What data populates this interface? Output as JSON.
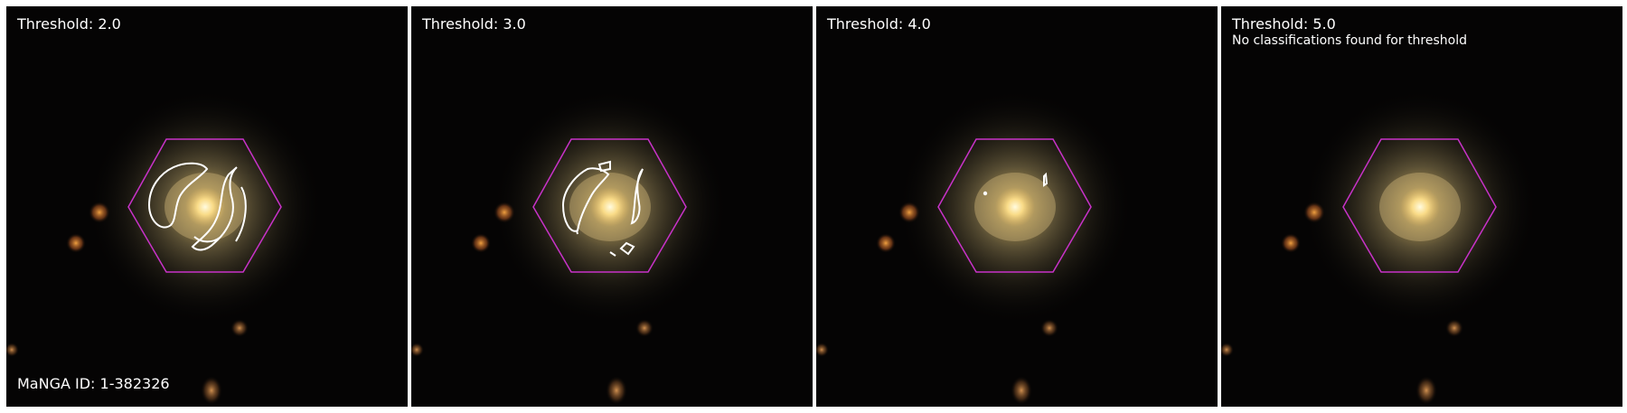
{
  "panels": [
    {
      "threshold_label": "Threshold: 2.0",
      "note": "",
      "footer": "MaNGA ID: 1-382326"
    },
    {
      "threshold_label": "Threshold: 3.0",
      "note": "",
      "footer": ""
    },
    {
      "threshold_label": "Threshold: 4.0",
      "note": "",
      "footer": ""
    },
    {
      "threshold_label": "Threshold: 5.0",
      "note": "No classifications found for threshold",
      "footer": ""
    }
  ],
  "colors": {
    "background": "#050404",
    "hexagon": "#c832c8",
    "contour": "#ffffff",
    "galaxy_core": "#fff1a8",
    "galaxy_halo": "#a89a68"
  }
}
